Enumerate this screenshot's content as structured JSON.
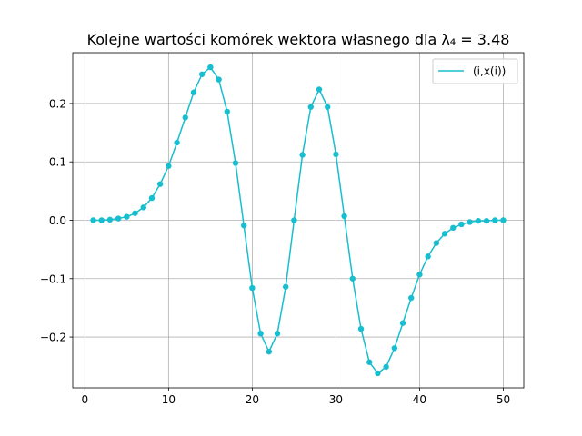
{
  "chart_data": {
    "type": "line",
    "title": "Kolejne wartości komórek wektora własnego dla λ₄ = 3.48",
    "xlabel": "",
    "ylabel": "",
    "xlim": [
      -1.45,
      52.45
    ],
    "ylim": [
      -0.287,
      0.287
    ],
    "xticks": [
      0,
      10,
      20,
      30,
      40,
      50
    ],
    "xtick_labels": [
      "0",
      "10",
      "20",
      "30",
      "40",
      "50"
    ],
    "yticks": [
      -0.2,
      -0.1,
      0.0,
      0.1,
      0.2
    ],
    "ytick_labels": [
      "−0.2",
      "−0.1",
      "0.0",
      "0.1",
      "0.2"
    ],
    "grid": true,
    "legend_position": "top-right",
    "colors": {
      "series": "#17becf",
      "grid": "#b0b0b0",
      "axis": "#000000"
    },
    "series": [
      {
        "name": "(i,x(i))",
        "marker": "circle",
        "x": [
          1,
          2,
          3,
          4,
          5,
          6,
          7,
          8,
          9,
          10,
          11,
          12,
          13,
          14,
          15,
          16,
          17,
          18,
          19,
          20,
          21,
          22,
          23,
          24,
          25,
          26,
          27,
          28,
          29,
          30,
          31,
          32,
          33,
          34,
          35,
          36,
          37,
          38,
          39,
          40,
          41,
          42,
          43,
          44,
          45,
          46,
          47,
          48,
          49,
          50
        ],
        "y": [
          0.0,
          0.0,
          0.001,
          0.003,
          0.006,
          0.012,
          0.022,
          0.038,
          0.062,
          0.093,
          0.133,
          0.176,
          0.219,
          0.25,
          0.262,
          0.241,
          0.186,
          0.098,
          -0.009,
          -0.116,
          -0.194,
          -0.225,
          -0.194,
          -0.114,
          0.0,
          0.112,
          0.194,
          0.224,
          0.194,
          0.113,
          0.007,
          -0.1,
          -0.186,
          -0.243,
          -0.262,
          -0.251,
          -0.219,
          -0.176,
          -0.133,
          -0.093,
          -0.062,
          -0.039,
          -0.023,
          -0.013,
          -0.007,
          -0.003,
          -0.001,
          -0.001,
          0.0,
          0.0
        ]
      }
    ]
  }
}
